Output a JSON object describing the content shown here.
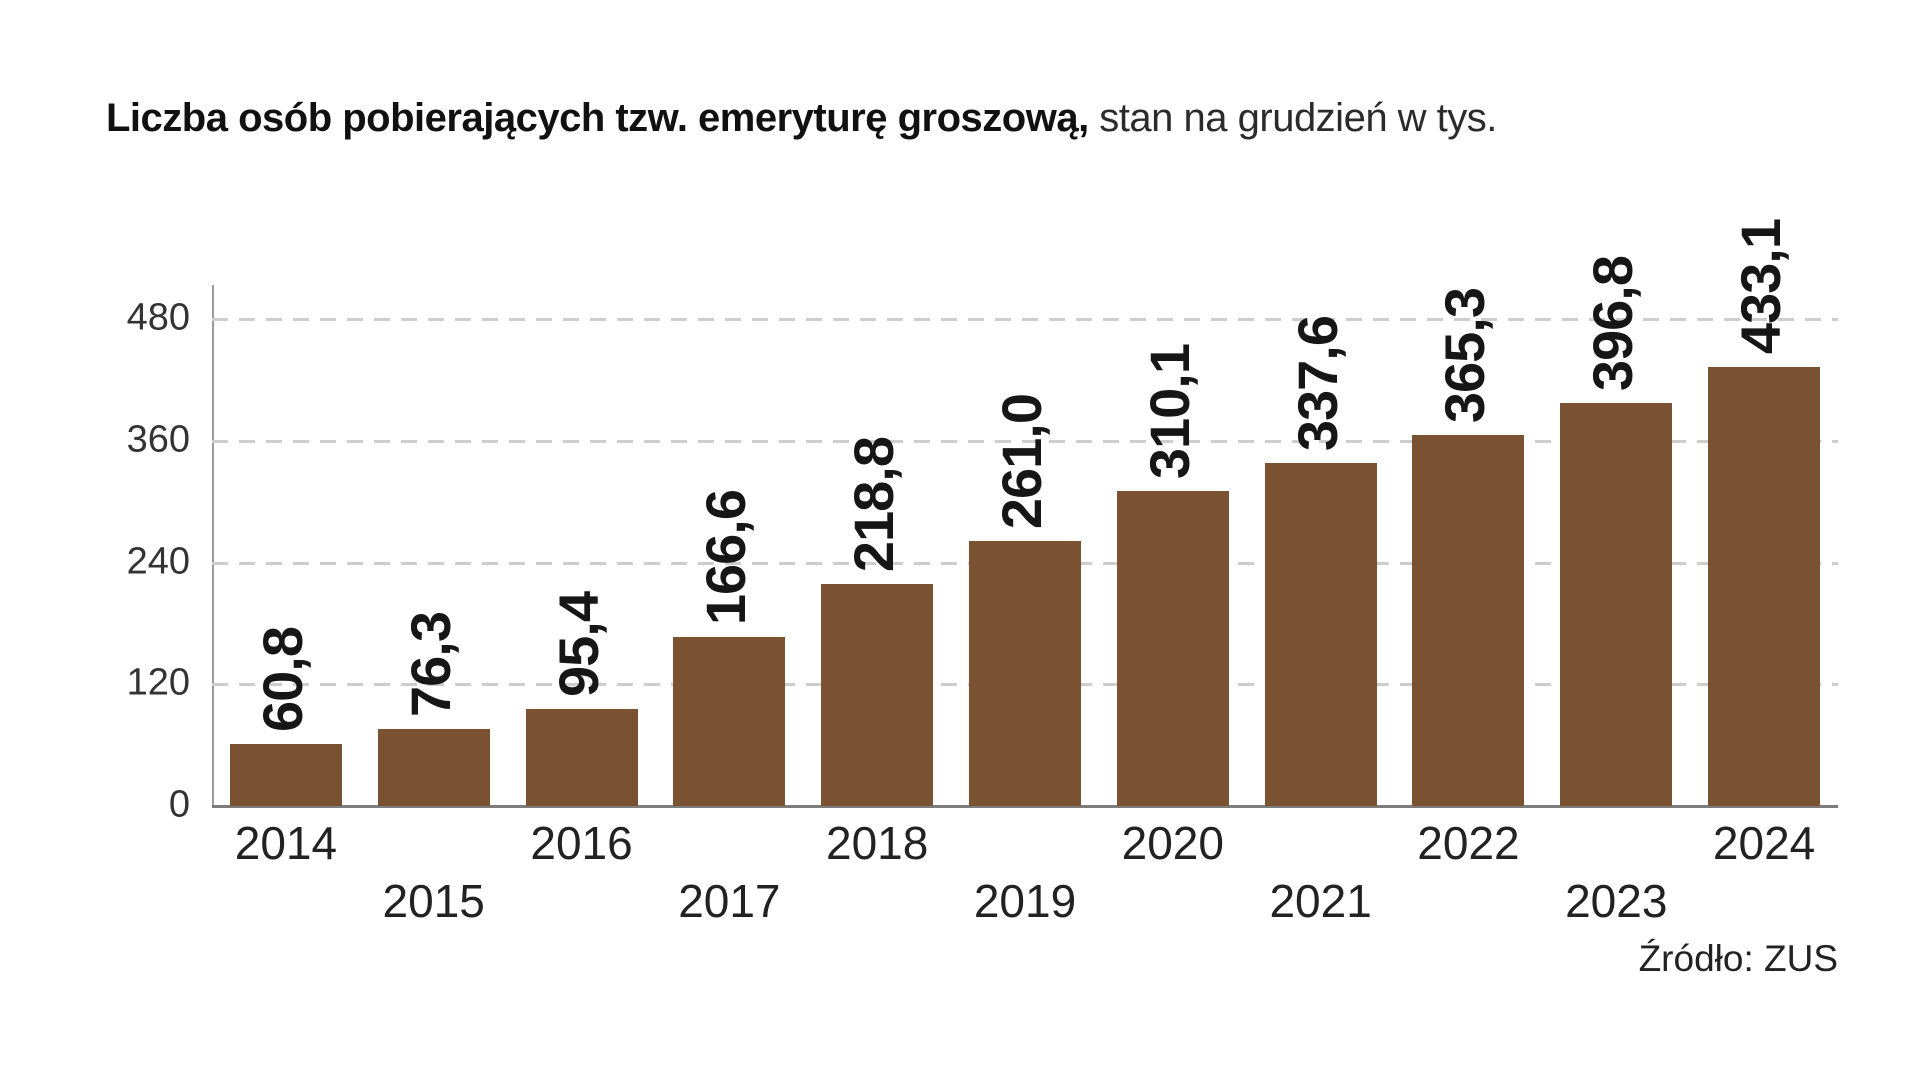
{
  "title": {
    "bold": "Liczba osób pobierających tzw. emeryturę groszową,",
    "rest": " stan na grudzień w tys."
  },
  "source": "Źródło: ZUS",
  "chart_data": {
    "type": "bar",
    "title": "Liczba osób pobierających tzw. emeryturę groszową, stan na grudzień w tys.",
    "categories": [
      "2014",
      "2015",
      "2016",
      "2017",
      "2018",
      "2019",
      "2020",
      "2021",
      "2022",
      "2023",
      "2024"
    ],
    "values": [
      60.8,
      76.3,
      95.4,
      166.6,
      218.8,
      261.0,
      310.1,
      337.6,
      365.3,
      396.8,
      433.1
    ],
    "value_labels": [
      "60,8",
      "76,3",
      "95,4",
      "166,6",
      "218,8",
      "261,0",
      "310,1",
      "337,6",
      "365,3",
      "396,8",
      "433,1"
    ],
    "xlabel": "",
    "ylabel": "",
    "yticks": [
      0,
      120,
      240,
      360,
      480
    ],
    "ylim": [
      0,
      480
    ],
    "grid": "dashed-horizontal",
    "legend": "none",
    "bar_color": "#7a5231",
    "label_rotation_deg": 90,
    "source": "Źródło: ZUS",
    "units": "tys. osób"
  }
}
